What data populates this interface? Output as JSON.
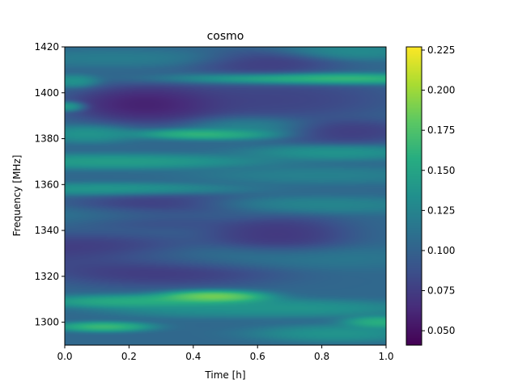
{
  "chart_data": {
    "type": "heatmap",
    "title": "cosmo",
    "xlabel": "Time [h]",
    "ylabel": "Frequency [MHz]",
    "xlim": [
      0.0,
      1.0
    ],
    "ylim": [
      1290,
      1420
    ],
    "x_ticks": [
      0.0,
      0.2,
      0.4,
      0.6,
      0.8,
      1.0
    ],
    "x_tick_labels": [
      "0.0",
      "0.2",
      "0.4",
      "0.6",
      "0.8",
      "1.0"
    ],
    "y_ticks": [
      1300,
      1320,
      1340,
      1360,
      1380,
      1400,
      1420
    ],
    "y_tick_labels": [
      "1300",
      "1320",
      "1340",
      "1360",
      "1380",
      "1400",
      "1420"
    ],
    "colormap": "viridis",
    "colorbar": {
      "range": [
        0.041,
        0.227
      ],
      "ticks": [
        0.05,
        0.075,
        0.1,
        0.125,
        0.15,
        0.175,
        0.2,
        0.225
      ],
      "tick_labels": [
        "0.050",
        "0.075",
        "0.100",
        "0.125",
        "0.150",
        "0.175",
        "0.200",
        "0.225"
      ]
    },
    "features": [
      {
        "f": 1298,
        "t": 0.12,
        "sf": 1.2,
        "st": 0.08,
        "v": 0.19
      },
      {
        "f": 1300,
        "t": 0.98,
        "sf": 1.5,
        "st": 0.06,
        "v": 0.18
      },
      {
        "f": 1295,
        "t": 0.85,
        "sf": 2.0,
        "st": 0.14,
        "v": 0.15
      },
      {
        "f": 1309,
        "t": 0.25,
        "sf": 1.6,
        "st": 0.18,
        "v": 0.18
      },
      {
        "f": 1311,
        "t": 0.46,
        "sf": 1.6,
        "st": 0.09,
        "v": 0.225
      },
      {
        "f": 1306,
        "t": 0.72,
        "sf": 2.0,
        "st": 0.2,
        "v": 0.15
      },
      {
        "f": 1306,
        "t": 0.4,
        "sf": 2.0,
        "st": 0.15,
        "v": 0.14
      },
      {
        "f": 1323,
        "t": 0.3,
        "sf": 4.0,
        "st": 0.2,
        "v": 0.06
      },
      {
        "f": 1331,
        "t": 0.05,
        "sf": 4.0,
        "st": 0.2,
        "v": 0.06
      },
      {
        "f": 1328,
        "t": 0.55,
        "sf": 3.0,
        "st": 0.3,
        "v": 0.125
      },
      {
        "f": 1338,
        "t": 0.66,
        "sf": 5.0,
        "st": 0.12,
        "v": 0.06
      },
      {
        "f": 1347,
        "t": 0.18,
        "sf": 2.0,
        "st": 0.25,
        "v": 0.12
      },
      {
        "f": 1351,
        "t": 0.78,
        "sf": 2.0,
        "st": 0.2,
        "v": 0.135
      },
      {
        "f": 1349,
        "t": 0.3,
        "sf": 4.0,
        "st": 0.15,
        "v": 0.06
      },
      {
        "f": 1358,
        "t": 0.15,
        "sf": 1.5,
        "st": 0.2,
        "v": 0.155
      },
      {
        "f": 1364,
        "t": 0.8,
        "sf": 2.0,
        "st": 0.2,
        "v": 0.13
      },
      {
        "f": 1370,
        "t": 0.15,
        "sf": 1.8,
        "st": 0.25,
        "v": 0.16
      },
      {
        "f": 1374,
        "t": 0.85,
        "sf": 1.8,
        "st": 0.15,
        "v": 0.15
      },
      {
        "f": 1382,
        "t": 0.45,
        "sf": 1.3,
        "st": 0.12,
        "v": 0.19
      },
      {
        "f": 1382,
        "t": 0.07,
        "sf": 2.0,
        "st": 0.08,
        "v": 0.15
      },
      {
        "f": 1383,
        "t": 0.88,
        "sf": 3.0,
        "st": 0.12,
        "v": 0.065
      },
      {
        "f": 1385,
        "t": 0.58,
        "sf": 2.5,
        "st": 0.1,
        "v": 0.135
      },
      {
        "f": 1395,
        "t": 0.26,
        "sf": 4.5,
        "st": 0.13,
        "v": 0.04
      },
      {
        "f": 1397,
        "t": 0.65,
        "sf": 5.0,
        "st": 0.2,
        "v": 0.07
      },
      {
        "f": 1394,
        "t": 0.01,
        "sf": 1.2,
        "st": 0.03,
        "v": 0.17
      },
      {
        "f": 1406,
        "t": 0.78,
        "sf": 1.4,
        "st": 0.22,
        "v": 0.2
      },
      {
        "f": 1405,
        "t": 0.03,
        "sf": 1.5,
        "st": 0.04,
        "v": 0.15
      },
      {
        "f": 1413,
        "t": 0.62,
        "sf": 3.0,
        "st": 0.12,
        "v": 0.065
      },
      {
        "f": 1418,
        "t": 0.9,
        "sf": 2.0,
        "st": 0.12,
        "v": 0.14
      },
      {
        "f": 1415,
        "t": 0.15,
        "sf": 2.0,
        "st": 0.2,
        "v": 0.125
      }
    ]
  }
}
